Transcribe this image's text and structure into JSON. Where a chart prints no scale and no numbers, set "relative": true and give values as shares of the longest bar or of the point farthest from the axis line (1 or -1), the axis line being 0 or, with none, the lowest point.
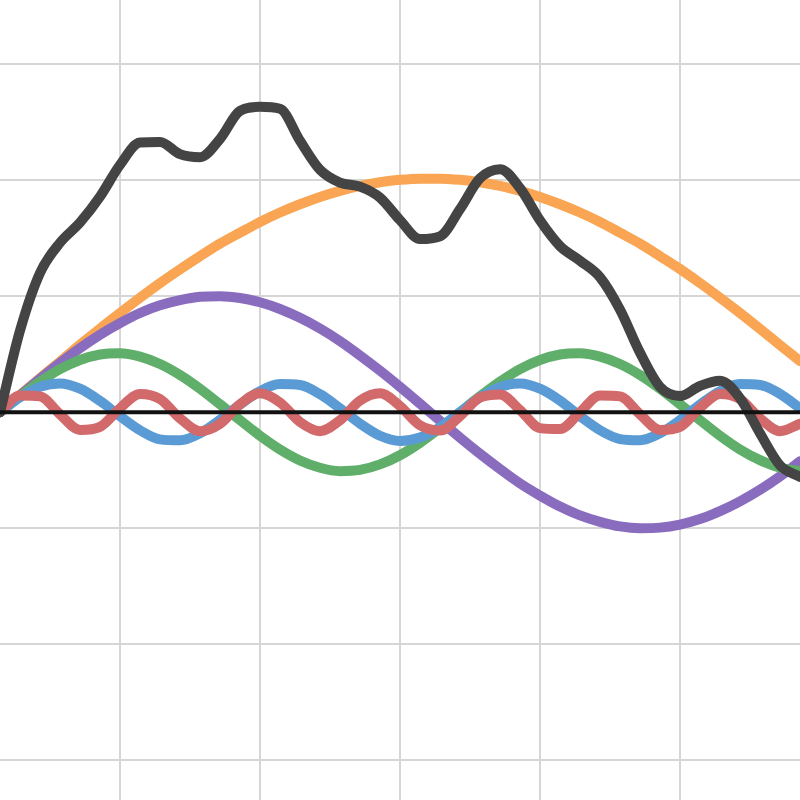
{
  "chart_data": {
    "type": "line",
    "relative": true,
    "grid": true,
    "legend": false,
    "marker": "none",
    "line_style": "solid",
    "categories": [
      null,
      null,
      null,
      null,
      null,
      null,
      null,
      null,
      null,
      null,
      null,
      null,
      null,
      null,
      null,
      null,
      null,
      null,
      null,
      null,
      null,
      null,
      null,
      null,
      null,
      null,
      null,
      null,
      null,
      null,
      null,
      null,
      null,
      null,
      null,
      null,
      null,
      null,
      null,
      null,
      null
    ],
    "series": [
      {
        "color": "#f9a553",
        "values": [
          0,
          0.056,
          0.112,
          0.166,
          0.221,
          0.274,
          0.325,
          0.375,
          0.423,
          0.468,
          0.511,
          0.552,
          0.588,
          0.623,
          0.654,
          0.681,
          0.705,
          0.725,
          0.741,
          0.753,
          0.761,
          0.765,
          0.765,
          0.761,
          0.753,
          0.741,
          0.725,
          0.705,
          0.681,
          0.654,
          0.623,
          0.588,
          0.552,
          0.511,
          0.469,
          0.423,
          0.375,
          0.325,
          0.273,
          0.22,
          0.167
        ]
      },
      {
        "color": "#8a6cbf",
        "values": [
          0,
          0.055,
          0.109,
          0.161,
          0.21,
          0.254,
          0.292,
          0.325,
          0.35,
          0.367,
          0.378,
          0.38,
          0.374,
          0.36,
          0.338,
          0.309,
          0.274,
          0.233,
          0.186,
          0.136,
          0.083,
          0.028,
          -0.028,
          -0.083,
          -0.136,
          -0.186,
          -0.233,
          -0.273,
          -0.309,
          -0.338,
          -0.359,
          -0.374,
          -0.38,
          -0.378,
          -0.368,
          -0.35,
          -0.324,
          -0.292,
          -0.254,
          -0.21,
          -0.161
        ]
      },
      {
        "color": "#5fae6a",
        "values": [
          0,
          0.052,
          0.1,
          0.141,
          0.171,
          0.189,
          0.193,
          0.182,
          0.158,
          0.122,
          0.077,
          0.026,
          -0.026,
          -0.077,
          -0.122,
          -0.158,
          -0.182,
          -0.193,
          -0.189,
          -0.171,
          -0.141,
          -0.1,
          -0.052,
          0,
          0.052,
          0.1,
          0.141,
          0.171,
          0.189,
          0.193,
          0.182,
          0.158,
          0.122,
          0.077,
          0.026,
          -0.026,
          -0.077,
          -0.122,
          -0.157,
          -0.182,
          -0.193
        ]
      },
      {
        "color": "#5b9bd5",
        "values": [
          0,
          0.049,
          0.083,
          0.094,
          0.077,
          0.037,
          -0.013,
          -0.059,
          -0.089,
          -0.092,
          -0.069,
          -0.025,
          0.025,
          0.069,
          0.092,
          0.089,
          0.059,
          0.013,
          -0.037,
          -0.077,
          -0.094,
          -0.083,
          -0.049,
          0,
          0.049,
          0.083,
          0.094,
          0.077,
          0.038,
          -0.013,
          -0.059,
          -0.088,
          -0.092,
          -0.069,
          -0.026,
          0.025,
          0.069,
          0.092,
          0.089,
          0.06,
          0.013
        ]
      },
      {
        "color": "#d2696a",
        "values": [
          0,
          0.055,
          0.052,
          -0.007,
          -0.058,
          -0.048,
          0.013,
          0.06,
          0.043,
          -0.02,
          -0.062,
          -0.038,
          0.026,
          0.062,
          0.032,
          -0.032,
          -0.062,
          -0.026,
          0.038,
          0.062,
          0.02,
          -0.043,
          -0.06,
          -0.013,
          0.048,
          0.058,
          0.007,
          -0.052,
          -0.055,
          0,
          0.055,
          0.052,
          -0.007,
          -0.058,
          -0.048,
          0.014,
          0.06,
          0.043,
          -0.02,
          -0.062,
          -0.038
        ]
      },
      {
        "color": "#444444",
        "values": [
          0,
          0.267,
          0.456,
          0.555,
          0.621,
          0.706,
          0.81,
          0.883,
          0.885,
          0.845,
          0.835,
          0.895,
          0.987,
          1,
          0.994,
          0.889,
          0.794,
          0.752,
          0.739,
          0.703,
          0.629,
          0.567,
          0.576,
          0.665,
          0.766,
          0.796,
          0.734,
          0.628,
          0.544,
          0.496,
          0.442,
          0.336,
          0.195,
          0.083,
          0.053,
          0.086,
          0.103,
          0.046,
          -0.069,
          -0.174,
          -0.212
        ]
      }
    ]
  }
}
